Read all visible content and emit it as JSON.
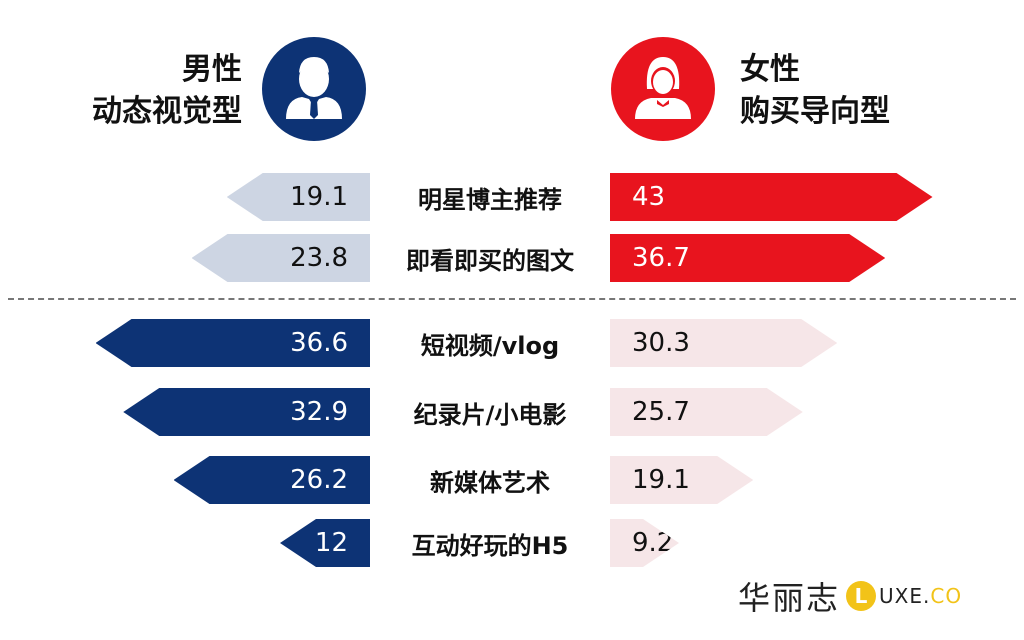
{
  "header": {
    "male": {
      "line1": "男性",
      "line2": "动态视觉型",
      "icon": "male-user-icon"
    },
    "female": {
      "line1": "女性",
      "line2": "购买导向型",
      "icon": "female-user-icon"
    }
  },
  "colors": {
    "male_dark": "#0d3375",
    "male_light": "#cdd5e3",
    "female_dark": "#e8141e",
    "female_light": "#f6e6e8"
  },
  "chart_data": {
    "type": "bar",
    "categories": [
      "明星博主推荐",
      "即看即买的图文",
      "短视频/vlog",
      "纪录片/小电影",
      "新媒体艺术",
      "互动好玩的H5"
    ],
    "series": [
      {
        "name": "男性",
        "values": [
          19.1,
          23.8,
          36.6,
          32.9,
          26.2,
          12
        ]
      },
      {
        "name": "女性",
        "values": [
          43,
          36.7,
          30.3,
          25.7,
          19.1,
          9.2
        ]
      }
    ],
    "value_labels": {
      "male": [
        "19.1",
        "23.8",
        "36.6",
        "32.9",
        "26.2",
        "12"
      ],
      "female": [
        "43",
        "36.7",
        "30.3",
        "25.7",
        "19.1",
        "9.2"
      ]
    },
    "highlight": [
      "female",
      "female",
      "male",
      "male",
      "male",
      "male"
    ],
    "divider_after_row": 1
  },
  "logo": {
    "cn": "华丽志",
    "l": "L",
    "en": "UXE.",
    "co": "CO"
  }
}
